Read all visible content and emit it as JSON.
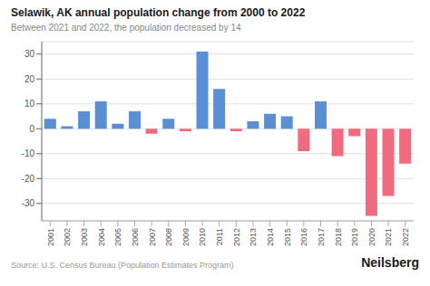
{
  "chart_data": {
    "type": "bar",
    "title": "Selawik, AK annual population change from 2000 to 2022",
    "subtitle": "Between 2021 and 2022, the population decreased by 14",
    "annotations": [
      "Source: U.S. Census Bureau (Population Estimates Program)",
      "Neilsberg"
    ],
    "categories": [
      "2001",
      "2002",
      "2003",
      "2004",
      "2005",
      "2006",
      "2007",
      "2008",
      "2009",
      "2010",
      "2011",
      "2012",
      "2013",
      "2014",
      "2015",
      "2016",
      "2017",
      "2018",
      "2019",
      "2020",
      "2021",
      "2022"
    ],
    "values": [
      4,
      1,
      7,
      11,
      2,
      7,
      -2,
      4,
      -1,
      31,
      16,
      -1,
      3,
      6,
      5,
      -9,
      11,
      -11,
      -3,
      -35,
      -27,
      -14
    ],
    "colors": [
      "#5b8fd4",
      "#5b8fd4",
      "#5b8fd4",
      "#5b8fd4",
      "#5b8fd4",
      "#5b8fd4",
      "#f06b7e",
      "#5b8fd4",
      "#f06b7e",
      "#5b8fd4",
      "#5b8fd4",
      "#f06b7e",
      "#5b8fd4",
      "#5b8fd4",
      "#5b8fd4",
      "#f06b7e",
      "#5b8fd4",
      "#f06b7e",
      "#f06b7e",
      "#f06b7e",
      "#f06b7e",
      "#f06b7e"
    ],
    "ylim": [
      -37,
      35
    ],
    "yticks": [
      -30,
      -20,
      -10,
      0,
      10,
      20,
      30
    ],
    "grid": true
  }
}
